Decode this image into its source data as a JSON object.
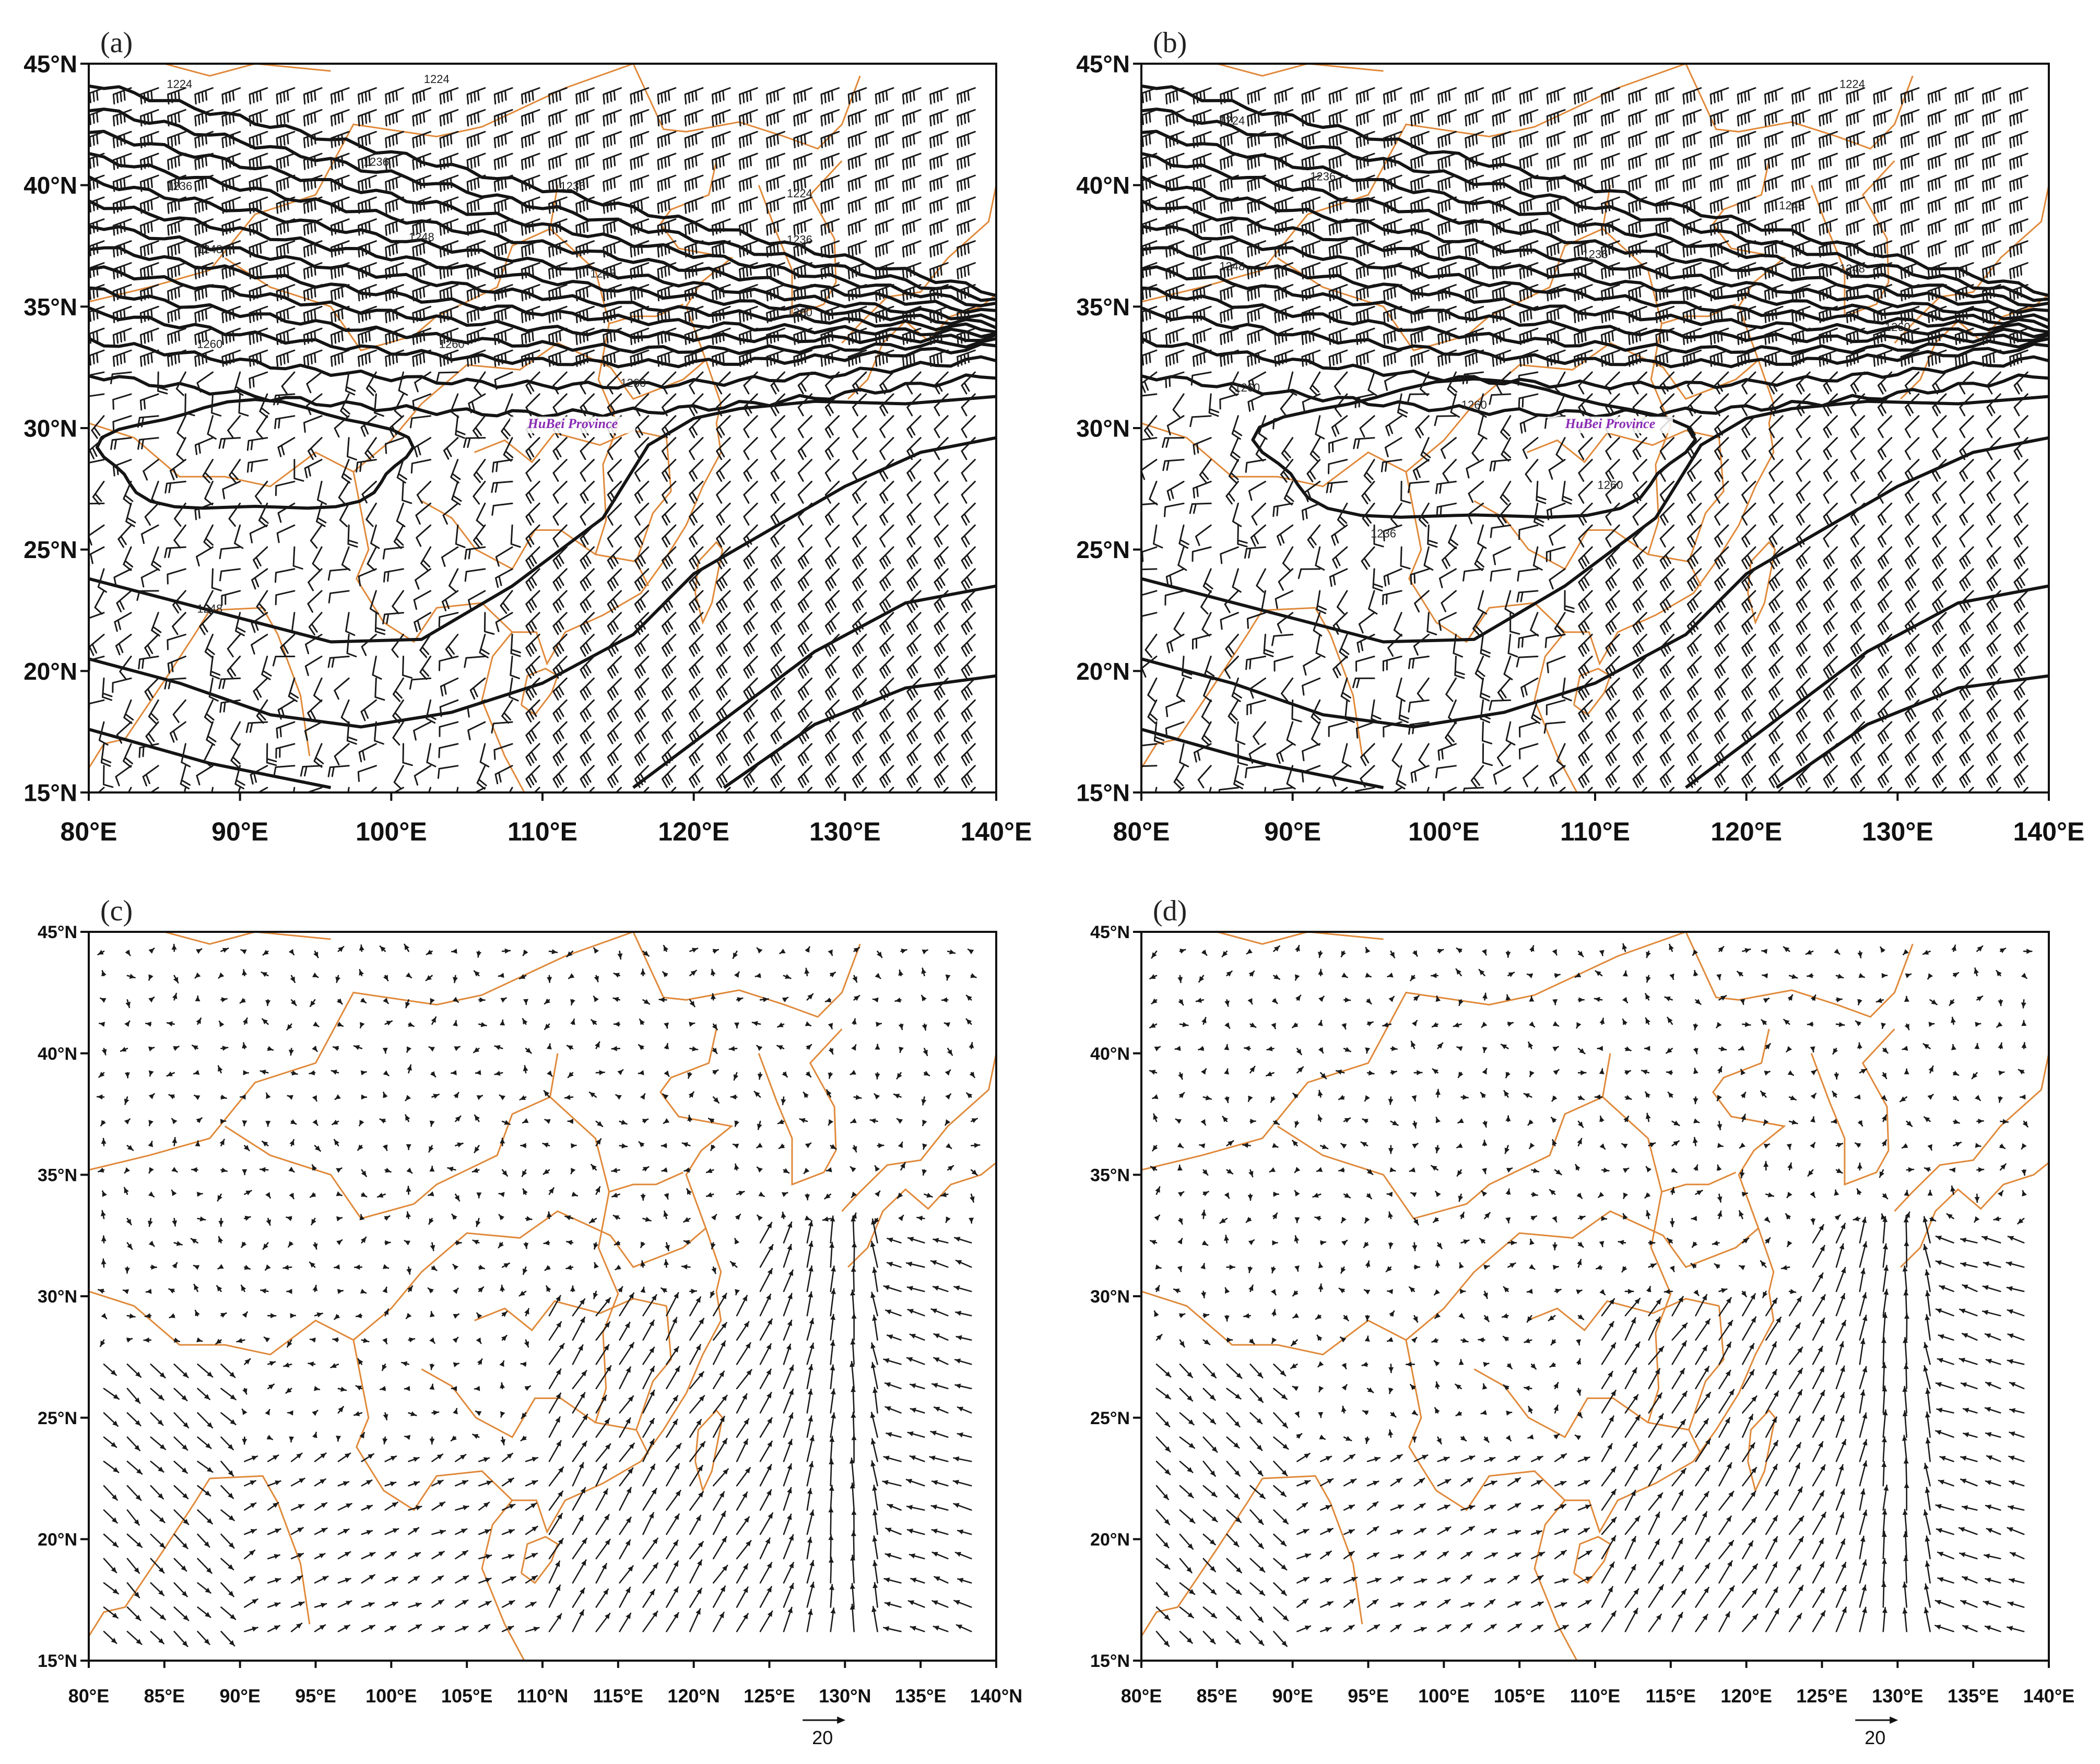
{
  "colors": {
    "border": "#e0893a",
    "contour": "#141414",
    "barb": "#1a1a1a",
    "vector": "#1a1a1a",
    "annotation": "#8a2bb5"
  },
  "top_lat_ticks": [
    "45°N",
    "40°N",
    "35°N",
    "30°N",
    "25°N",
    "20°N",
    "15°N"
  ],
  "top_lon_ticks": [
    "80°E",
    "90°E",
    "100°E",
    "110°E",
    "120°E",
    "130°E",
    "140°E"
  ],
  "bottom_lat_ticks": [
    "45°N",
    "40°N",
    "35°N",
    "30°N",
    "25°N",
    "20°N",
    "15°N"
  ],
  "panels": [
    {
      "id": "a",
      "label": "(a)",
      "type": "geopotential-contours-wind-barbs",
      "lon_range": [
        80,
        140
      ],
      "lat_range": [
        15,
        45
      ],
      "region_label": "HuBei Province",
      "contour_labels": [
        "1224",
        "1224",
        "1236",
        "1236",
        "1236",
        "1224",
        "1236",
        "1248",
        "1248",
        "1248",
        "1260",
        "1260",
        "1260",
        "1260",
        "1248"
      ]
    },
    {
      "id": "b",
      "label": "(b)",
      "type": "geopotential-contours-wind-barbs",
      "lon_range": [
        80,
        140
      ],
      "lat_range": [
        15,
        45
      ],
      "region_label": "HuBei Province",
      "contour_labels": [
        "1224",
        "1224",
        "1236",
        "1248",
        "1248",
        "1236",
        "1248",
        "1260",
        "1260",
        "1260",
        "1260",
        "1236"
      ]
    },
    {
      "id": "c",
      "label": "(c)",
      "type": "wind-vectors",
      "lon_range": [
        80,
        140
      ],
      "lat_range": [
        15,
        45
      ],
      "lon_ticks": [
        "80°E",
        "85°E",
        "90°E",
        "95°E",
        "100°E",
        "105°E",
        "110°N",
        "115°E",
        "120°N",
        "125°E",
        "130°N",
        "135°E",
        "140°N"
      ],
      "reference_vector": "20"
    },
    {
      "id": "d",
      "label": "(d)",
      "type": "wind-vectors",
      "lon_range": [
        80,
        140
      ],
      "lat_range": [
        15,
        45
      ],
      "lon_ticks": [
        "80°E",
        "85°E",
        "90°E",
        "95°E",
        "100°E",
        "105°E",
        "110°E",
        "115°E",
        "120°E",
        "125°E",
        "130°E",
        "135°E",
        "140°E"
      ],
      "reference_vector": "20"
    }
  ]
}
